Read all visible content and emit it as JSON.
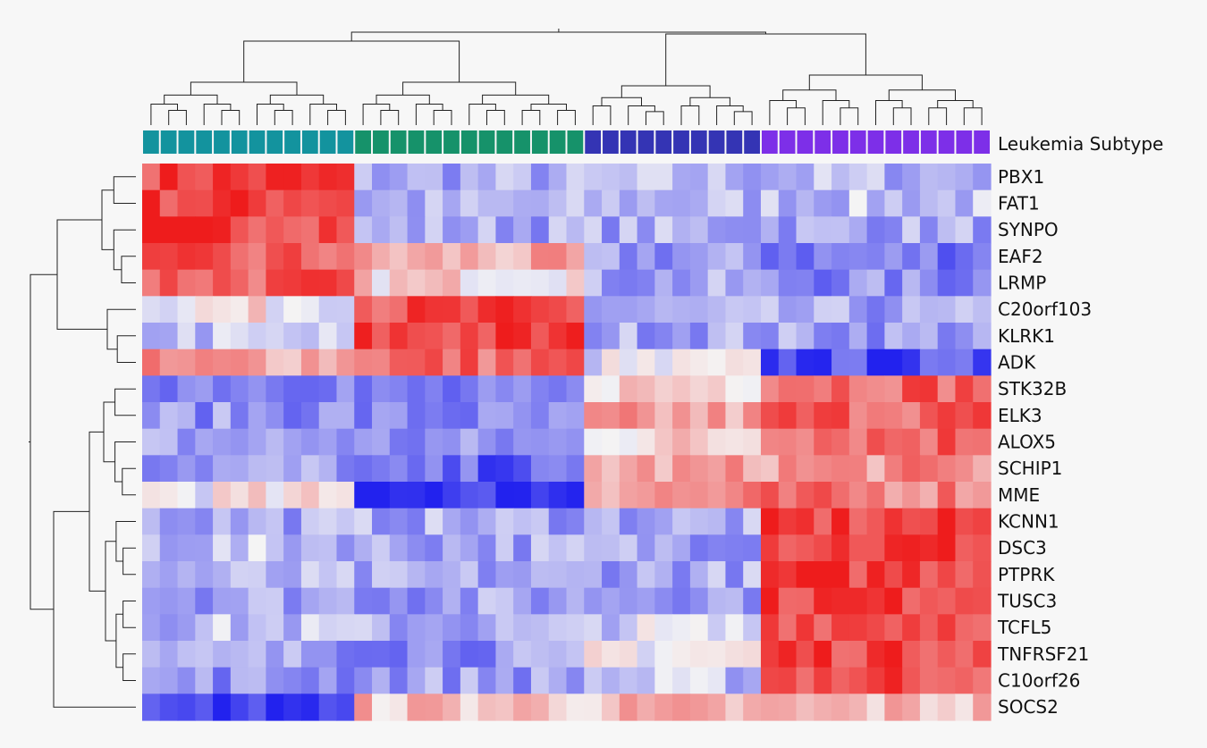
{
  "chart_data": {
    "type": "heatmap",
    "title": "",
    "xlabel": "",
    "ylabel": "",
    "legend": {
      "label": "Leukemia Subtype"
    },
    "colors": {
      "low": "#2222ee",
      "mid": "#f4f4f4",
      "high": "#ee1c1c",
      "groups": [
        "#13939e",
        "#16926a",
        "#3434b4",
        "#7d2fe8"
      ]
    },
    "value_range": [
      -1,
      1
    ],
    "group_sizes": [
      12,
      13,
      10,
      13
    ],
    "genes": [
      "PBX1",
      "FAT1",
      "SYNPO",
      "EAF2",
      "LRMP",
      "C20orf103",
      "KLRK1",
      "ADK",
      "STK32B",
      "ELK3",
      "ALOX5",
      "SCHIP1",
      "MME",
      "KCNN1",
      "DSC3",
      "PTPRK",
      "TUSC3",
      "TCFL5",
      "TNFRSF21",
      "C10orf26",
      "SOCS2"
    ],
    "group_means": [
      [
        0.85,
        -0.35,
        -0.3,
        -0.3
      ],
      [
        0.85,
        -0.35,
        -0.3,
        -0.25
      ],
      [
        0.85,
        -0.35,
        -0.35,
        -0.35
      ],
      [
        0.65,
        0.3,
        -0.45,
        -0.55
      ],
      [
        0.7,
        0.15,
        -0.4,
        -0.5
      ],
      [
        0.05,
        0.75,
        -0.4,
        -0.4
      ],
      [
        -0.25,
        0.8,
        -0.35,
        -0.4
      ],
      [
        0.4,
        0.65,
        -0.1,
        -0.8
      ],
      [
        -0.45,
        -0.65,
        0.2,
        0.7
      ],
      [
        -0.45,
        -0.55,
        0.35,
        0.7
      ],
      [
        -0.4,
        -0.5,
        0.15,
        0.7
      ],
      [
        -0.4,
        -0.7,
        0.35,
        0.45
      ],
      [
        0.02,
        -0.9,
        0.45,
        0.55
      ],
      [
        -0.35,
        -0.35,
        -0.35,
        0.8
      ],
      [
        -0.25,
        -0.35,
        -0.35,
        0.85
      ],
      [
        -0.35,
        -0.4,
        -0.35,
        0.85
      ],
      [
        -0.35,
        -0.4,
        -0.35,
        0.85
      ],
      [
        -0.25,
        -0.35,
        -0.15,
        0.85
      ],
      [
        -0.4,
        -0.45,
        0.05,
        0.85
      ],
      [
        -0.45,
        -0.4,
        -0.25,
        0.8
      ],
      [
        -0.9,
        0.25,
        0.25,
        0.25
      ]
    ]
  }
}
